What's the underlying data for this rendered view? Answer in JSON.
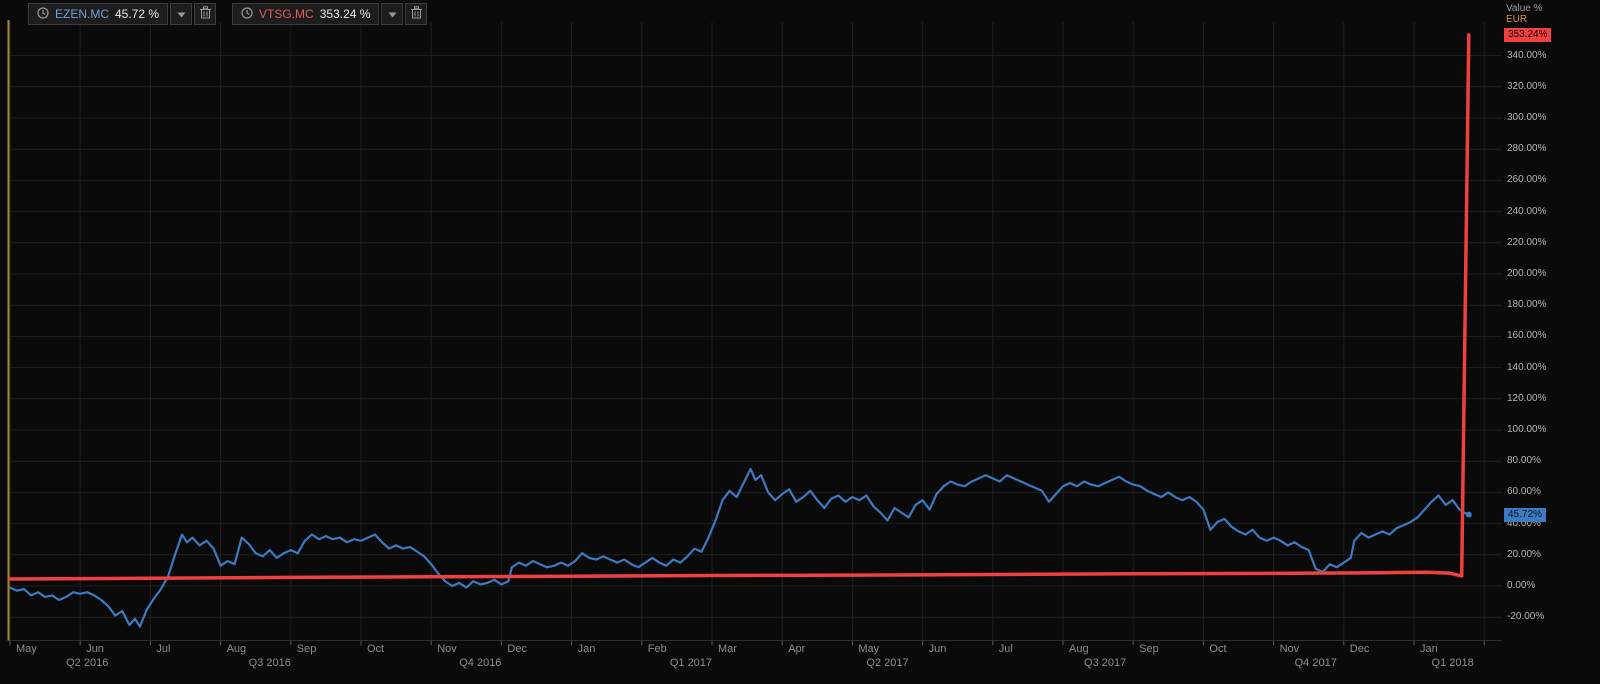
{
  "colors": {
    "background": "#0a0a0a",
    "grid": "#1f1f1f",
    "axis_line": "#2e2e2e",
    "tick_mark": "#5a5a5a",
    "left_edge": "#a8862c",
    "series_blue": "#3d7ac0",
    "series_red": "#f04040",
    "eur_label": "#dd8f33",
    "axis_text": "#b4b4b4"
  },
  "legend": {
    "items": [
      {
        "symbol": "EZEN.MC",
        "value": "45.72 %",
        "color": "#71a0d8"
      },
      {
        "symbol": "VTSG.MC",
        "value": "353.24 %",
        "color": "#de5f62"
      }
    ]
  },
  "right_axis": {
    "title": "Value %",
    "currency": "EUR",
    "ticks": [
      {
        "label": "340.00%",
        "value": 340
      },
      {
        "label": "320.00%",
        "value": 320
      },
      {
        "label": "300.00%",
        "value": 300
      },
      {
        "label": "280.00%",
        "value": 280
      },
      {
        "label": "260.00%",
        "value": 260
      },
      {
        "label": "240.00%",
        "value": 240
      },
      {
        "label": "220.00%",
        "value": 220
      },
      {
        "label": "200.00%",
        "value": 200
      },
      {
        "label": "180.00%",
        "value": 180
      },
      {
        "label": "160.00%",
        "value": 160
      },
      {
        "label": "140.00%",
        "value": 140
      },
      {
        "label": "120.00%",
        "value": 120
      },
      {
        "label": "100.00%",
        "value": 100
      },
      {
        "label": "80.00%",
        "value": 80
      },
      {
        "label": "60.00%",
        "value": 60
      },
      {
        "label": "40.00%",
        "value": 40
      },
      {
        "label": "20.00%",
        "value": 20
      },
      {
        "label": "0.00%",
        "value": 0
      },
      {
        "label": "-20.00%",
        "value": -20
      }
    ],
    "badges": [
      {
        "label": "353.24%",
        "value": 353.24,
        "bg": "#f04040",
        "fg": "#1a0000",
        "series": "VTSG.MC"
      },
      {
        "label": "45.72%",
        "value": 45.72,
        "bg": "#3d7ac0",
        "fg": "#061426",
        "series": "EZEN.MC"
      }
    ]
  },
  "x_axis": {
    "months": [
      {
        "label": "May",
        "index": 0
      },
      {
        "label": "Jun",
        "index": 1
      },
      {
        "label": "Jul",
        "index": 2
      },
      {
        "label": "Aug",
        "index": 3
      },
      {
        "label": "Sep",
        "index": 4
      },
      {
        "label": "Oct",
        "index": 5
      },
      {
        "label": "Nov",
        "index": 6
      },
      {
        "label": "Dec",
        "index": 7
      },
      {
        "label": "Jan",
        "index": 8
      },
      {
        "label": "Feb",
        "index": 9
      },
      {
        "label": "Mar",
        "index": 10
      },
      {
        "label": "Apr",
        "index": 11
      },
      {
        "label": "May",
        "index": 12
      },
      {
        "label": "Jun",
        "index": 13
      },
      {
        "label": "Jul",
        "index": 14
      },
      {
        "label": "Aug",
        "index": 15
      },
      {
        "label": "Sep",
        "index": 16
      },
      {
        "label": "Oct",
        "index": 17
      },
      {
        "label": "Nov",
        "index": 18
      },
      {
        "label": "Dec",
        "index": 19
      },
      {
        "label": "Jan",
        "index": 20
      }
    ],
    "quarters": [
      {
        "label": "Q2 2016",
        "center": 1.1
      },
      {
        "label": "Q3 2016",
        "center": 3.7
      },
      {
        "label": "Q4 2016",
        "center": 6.7
      },
      {
        "label": "Q1 2017",
        "center": 9.7
      },
      {
        "label": "Q2 2017",
        "center": 12.5
      },
      {
        "label": "Q3 2017",
        "center": 15.6
      },
      {
        "label": "Q4 2017",
        "center": 18.6
      },
      {
        "label": "Q1 2018",
        "center": 20.55
      }
    ]
  },
  "chart_data": {
    "type": "line",
    "title": "",
    "ylabel": "Value %",
    "currency": "EUR",
    "x_unit": "months since May 2016",
    "x_range": [
      "May 2016",
      "Jan 2018"
    ],
    "ylim": [
      -30,
      360
    ],
    "y_tick_step": 20,
    "grid": true,
    "legend_position": "top-left",
    "series": [
      {
        "name": "EZEN.MC",
        "color": "#3d7ac0",
        "width": 2.2,
        "last_value": 45.72,
        "points": [
          [
            0,
            -1
          ],
          [
            0.1,
            -3
          ],
          [
            0.2,
            -2
          ],
          [
            0.3,
            -6
          ],
          [
            0.4,
            -4
          ],
          [
            0.5,
            -7
          ],
          [
            0.6,
            -6
          ],
          [
            0.7,
            -9
          ],
          [
            0.8,
            -7
          ],
          [
            0.9,
            -4
          ],
          [
            1,
            -5
          ],
          [
            1.1,
            -4
          ],
          [
            1.2,
            -6
          ],
          [
            1.3,
            -9
          ],
          [
            1.4,
            -13
          ],
          [
            1.5,
            -19
          ],
          [
            1.6,
            -16
          ],
          [
            1.7,
            -25
          ],
          [
            1.78,
            -21
          ],
          [
            1.85,
            -26
          ],
          [
            1.95,
            -15
          ],
          [
            2.05,
            -8
          ],
          [
            2.15,
            -2
          ],
          [
            2.25,
            6
          ],
          [
            2.35,
            20
          ],
          [
            2.45,
            33
          ],
          [
            2.52,
            28
          ],
          [
            2.6,
            31
          ],
          [
            2.7,
            26
          ],
          [
            2.8,
            29
          ],
          [
            2.9,
            24
          ],
          [
            3,
            13
          ],
          [
            3.1,
            16
          ],
          [
            3.2,
            14
          ],
          [
            3.3,
            31
          ],
          [
            3.4,
            27
          ],
          [
            3.5,
            21
          ],
          [
            3.6,
            19
          ],
          [
            3.7,
            23
          ],
          [
            3.8,
            18
          ],
          [
            3.9,
            21
          ],
          [
            4,
            23
          ],
          [
            4.1,
            21
          ],
          [
            4.2,
            29
          ],
          [
            4.3,
            33
          ],
          [
            4.4,
            30
          ],
          [
            4.5,
            32
          ],
          [
            4.6,
            30
          ],
          [
            4.7,
            31
          ],
          [
            4.8,
            28
          ],
          [
            4.9,
            30
          ],
          [
            5,
            29
          ],
          [
            5.1,
            31
          ],
          [
            5.2,
            33
          ],
          [
            5.3,
            28
          ],
          [
            5.4,
            24
          ],
          [
            5.5,
            26
          ],
          [
            5.6,
            24
          ],
          [
            5.7,
            25
          ],
          [
            5.8,
            22
          ],
          [
            5.9,
            19
          ],
          [
            6,
            14
          ],
          [
            6.1,
            8
          ],
          [
            6.2,
            3
          ],
          [
            6.3,
            0
          ],
          [
            6.4,
            2
          ],
          [
            6.5,
            -1
          ],
          [
            6.6,
            3
          ],
          [
            6.7,
            1
          ],
          [
            6.8,
            2
          ],
          [
            6.9,
            4
          ],
          [
            7,
            1
          ],
          [
            7.1,
            3
          ],
          [
            7.15,
            12
          ],
          [
            7.25,
            15
          ],
          [
            7.35,
            13
          ],
          [
            7.45,
            16
          ],
          [
            7.55,
            14
          ],
          [
            7.65,
            12
          ],
          [
            7.75,
            13
          ],
          [
            7.85,
            15
          ],
          [
            7.95,
            13
          ],
          [
            8.05,
            16
          ],
          [
            8.15,
            21
          ],
          [
            8.25,
            18
          ],
          [
            8.35,
            17
          ],
          [
            8.45,
            19
          ],
          [
            8.55,
            17
          ],
          [
            8.65,
            15
          ],
          [
            8.75,
            17
          ],
          [
            8.85,
            14
          ],
          [
            8.95,
            12
          ],
          [
            9.05,
            15
          ],
          [
            9.15,
            18
          ],
          [
            9.25,
            15
          ],
          [
            9.35,
            13
          ],
          [
            9.45,
            17
          ],
          [
            9.55,
            15
          ],
          [
            9.65,
            19
          ],
          [
            9.75,
            24
          ],
          [
            9.85,
            22
          ],
          [
            9.95,
            31
          ],
          [
            10.05,
            42
          ],
          [
            10.15,
            55
          ],
          [
            10.25,
            61
          ],
          [
            10.35,
            57
          ],
          [
            10.45,
            66
          ],
          [
            10.55,
            75
          ],
          [
            10.62,
            68
          ],
          [
            10.7,
            71
          ],
          [
            10.8,
            60
          ],
          [
            10.9,
            55
          ],
          [
            11,
            59
          ],
          [
            11.1,
            62
          ],
          [
            11.2,
            54
          ],
          [
            11.3,
            57
          ],
          [
            11.4,
            61
          ],
          [
            11.5,
            55
          ],
          [
            11.6,
            50
          ],
          [
            11.7,
            56
          ],
          [
            11.8,
            58
          ],
          [
            11.9,
            54
          ],
          [
            12,
            57
          ],
          [
            12.1,
            55
          ],
          [
            12.2,
            58
          ],
          [
            12.3,
            51
          ],
          [
            12.4,
            47
          ],
          [
            12.5,
            42
          ],
          [
            12.6,
            50
          ],
          [
            12.7,
            47
          ],
          [
            12.8,
            44
          ],
          [
            12.9,
            52
          ],
          [
            13,
            55
          ],
          [
            13.1,
            49
          ],
          [
            13.2,
            59
          ],
          [
            13.3,
            64
          ],
          [
            13.4,
            67
          ],
          [
            13.5,
            65
          ],
          [
            13.6,
            64
          ],
          [
            13.7,
            67
          ],
          [
            13.8,
            69
          ],
          [
            13.9,
            71
          ],
          [
            14,
            69
          ],
          [
            14.1,
            67
          ],
          [
            14.2,
            71
          ],
          [
            14.3,
            69
          ],
          [
            14.4,
            67
          ],
          [
            14.5,
            65
          ],
          [
            14.6,
            63
          ],
          [
            14.7,
            61
          ],
          [
            14.8,
            54
          ],
          [
            14.9,
            59
          ],
          [
            15,
            64
          ],
          [
            15.1,
            66
          ],
          [
            15.2,
            64
          ],
          [
            15.3,
            67
          ],
          [
            15.4,
            65
          ],
          [
            15.5,
            64
          ],
          [
            15.6,
            66
          ],
          [
            15.7,
            68
          ],
          [
            15.8,
            70
          ],
          [
            15.9,
            67
          ],
          [
            16,
            65
          ],
          [
            16.1,
            64
          ],
          [
            16.2,
            61
          ],
          [
            16.3,
            59
          ],
          [
            16.4,
            57
          ],
          [
            16.5,
            60
          ],
          [
            16.6,
            57
          ],
          [
            16.7,
            55
          ],
          [
            16.8,
            57
          ],
          [
            16.9,
            54
          ],
          [
            17,
            49
          ],
          [
            17.1,
            36
          ],
          [
            17.2,
            41
          ],
          [
            17.3,
            43
          ],
          [
            17.4,
            38
          ],
          [
            17.5,
            35
          ],
          [
            17.6,
            33
          ],
          [
            17.7,
            36
          ],
          [
            17.8,
            31
          ],
          [
            17.9,
            29
          ],
          [
            18,
            31
          ],
          [
            18.1,
            29
          ],
          [
            18.2,
            26
          ],
          [
            18.3,
            28
          ],
          [
            18.4,
            25
          ],
          [
            18.5,
            23
          ],
          [
            18.6,
            11
          ],
          [
            18.7,
            9
          ],
          [
            18.8,
            14
          ],
          [
            18.9,
            12
          ],
          [
            19,
            15
          ],
          [
            19.1,
            18
          ],
          [
            19.15,
            29
          ],
          [
            19.25,
            34
          ],
          [
            19.35,
            31
          ],
          [
            19.45,
            33
          ],
          [
            19.55,
            35
          ],
          [
            19.65,
            33
          ],
          [
            19.75,
            37
          ],
          [
            19.85,
            39
          ],
          [
            19.95,
            41
          ],
          [
            20.05,
            44
          ],
          [
            20.15,
            49
          ],
          [
            20.25,
            54
          ],
          [
            20.35,
            58
          ],
          [
            20.45,
            52
          ],
          [
            20.55,
            55
          ],
          [
            20.65,
            49
          ],
          [
            20.72,
            47
          ],
          [
            20.78,
            45.72
          ]
        ]
      },
      {
        "name": "VTSG.MC",
        "color": "#f04040",
        "width": 3.5,
        "last_value": 353.24,
        "points": [
          [
            0,
            4.5
          ],
          [
            2,
            5
          ],
          [
            4,
            5.5
          ],
          [
            6,
            5.9
          ],
          [
            8,
            6.3
          ],
          [
            10,
            6.7
          ],
          [
            12,
            7
          ],
          [
            14,
            7.4
          ],
          [
            16,
            7.8
          ],
          [
            18,
            8.1
          ],
          [
            19.5,
            8.5
          ],
          [
            20.2,
            8.8
          ],
          [
            20.5,
            8.3
          ],
          [
            20.68,
            6.5
          ],
          [
            20.78,
            353.24
          ]
        ]
      }
    ]
  }
}
